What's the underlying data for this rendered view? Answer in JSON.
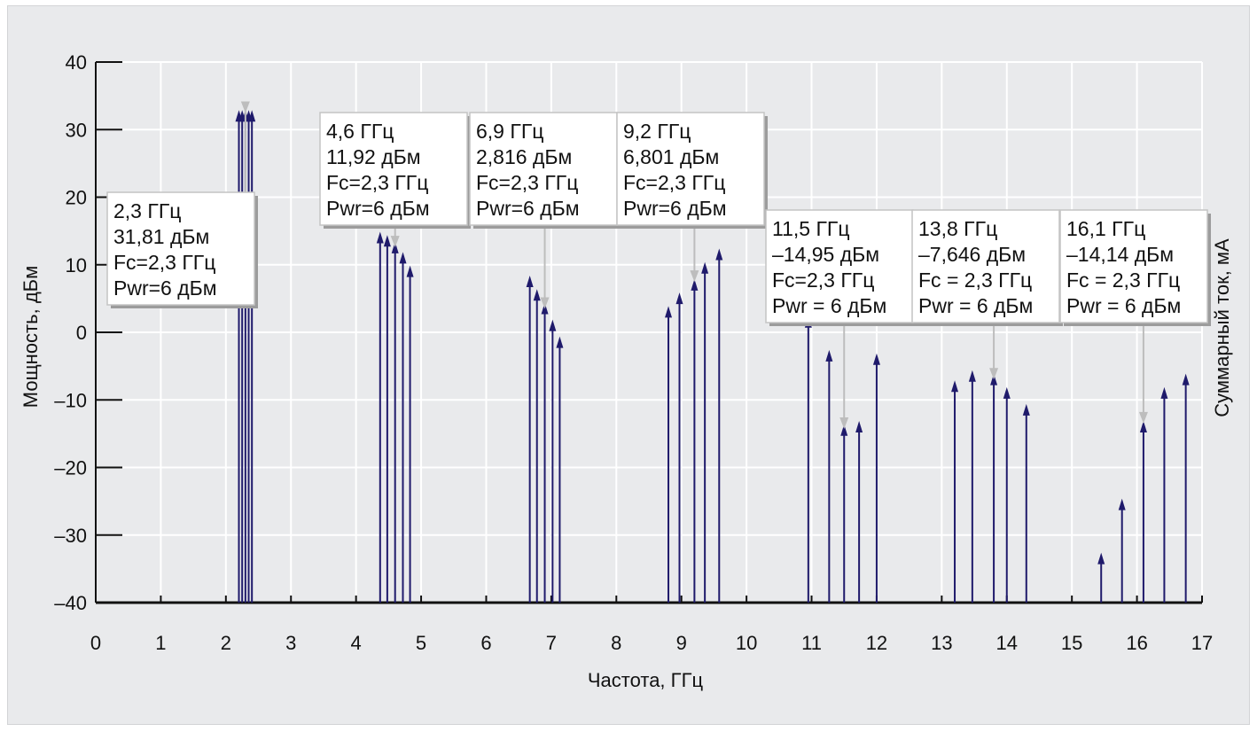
{
  "chart_data": {
    "type": "stem",
    "xlabel": "Частота, ГГц",
    "ylabel": "Мощность, дБм",
    "y2label": "Суммарный ток, мА",
    "xlim": [
      0,
      17
    ],
    "ylim": [
      -40,
      40
    ],
    "xticks": [
      "0",
      "1",
      "2",
      "3",
      "4",
      "5",
      "6",
      "7",
      "8",
      "9",
      "10",
      "11",
      "12",
      "13",
      "14",
      "15",
      "16",
      "17"
    ],
    "yticks": [
      "40",
      "30",
      "20",
      "10",
      "0",
      "–10",
      "–20",
      "–30",
      "–40"
    ],
    "grid": true,
    "colors": {
      "stem": "#1f1a6b",
      "grid": "#ffffff",
      "plot_bg": "#e9eaec",
      "callout": "#bdbdbd"
    },
    "groups": [
      {
        "points": [
          [
            2.2,
            32.5
          ],
          [
            2.25,
            32.5
          ],
          [
            2.3,
            32.5
          ],
          [
            2.35,
            32.5
          ],
          [
            2.4,
            32.5
          ]
        ]
      },
      {
        "points": [
          [
            4.37,
            14.5
          ],
          [
            4.48,
            14
          ],
          [
            4.6,
            13
          ],
          [
            4.72,
            11.5
          ],
          [
            4.83,
            9.5
          ]
        ]
      },
      {
        "points": [
          [
            6.67,
            8
          ],
          [
            6.78,
            6
          ],
          [
            6.9,
            4
          ],
          [
            7.02,
            1.5
          ],
          [
            7.13,
            -1
          ]
        ]
      },
      {
        "points": [
          [
            8.8,
            3.5
          ],
          [
            8.97,
            5.5
          ],
          [
            9.2,
            7.5
          ],
          [
            9.36,
            10
          ],
          [
            9.58,
            12
          ]
        ]
      },
      {
        "points": [
          [
            10.95,
            2
          ],
          [
            11.27,
            -3
          ],
          [
            11.5,
            -14
          ],
          [
            11.73,
            -13.5
          ],
          [
            12.0,
            -3.5
          ]
        ]
      },
      {
        "points": [
          [
            13.2,
            -7.5
          ],
          [
            13.47,
            -6
          ],
          [
            13.8,
            -6.5
          ],
          [
            14.0,
            -8.5
          ],
          [
            14.3,
            -11
          ]
        ]
      },
      {
        "points": [
          [
            15.45,
            -33
          ],
          [
            15.77,
            -25
          ],
          [
            16.1,
            -13.5
          ],
          [
            16.42,
            -8.5
          ],
          [
            16.75,
            -6.5
          ]
        ]
      }
    ],
    "annotations": [
      {
        "lines": [
          "2,3 ГГц",
          "31,81 дБм",
          "Fc=2,3 ГГц",
          "Pwr=6 дБм"
        ],
        "target": [
          2.3,
          31.81
        ]
      },
      {
        "lines": [
          "4,6 ГГц",
          "11,92 дБм",
          "Fc=2,3 ГГц",
          "Pwr=6 дБм"
        ],
        "target": [
          4.6,
          11.92
        ]
      },
      {
        "lines": [
          "6,9 ГГц",
          "2,816 дБм",
          "Fc=2,3 ГГц",
          "Pwr=6 дБм"
        ],
        "target": [
          6.9,
          2.816
        ]
      },
      {
        "lines": [
          "9,2 ГГц",
          "6,801 дБм",
          "Fc=2,3 ГГц",
          "Pwr=6 дБм"
        ],
        "target": [
          9.2,
          6.801
        ]
      },
      {
        "lines": [
          "11,5 ГГц",
          "–14,95 дБм",
          "Fc=2,3 ГГц",
          "Pwr = 6 дБм"
        ],
        "target": [
          11.5,
          -14.95
        ]
      },
      {
        "lines": [
          "13,8 ГГц",
          "–7,646 дБм",
          "Fc = 2,3 ГГц",
          "Pwr = 6 дБм"
        ],
        "target": [
          13.8,
          -7.646
        ]
      },
      {
        "lines": [
          "16,1 ГГц",
          "–14,14 дБм",
          "Fc = 2,3 ГГц",
          "Pwr = 6 дБм"
        ],
        "target": [
          16.1,
          -14.14
        ]
      }
    ]
  }
}
